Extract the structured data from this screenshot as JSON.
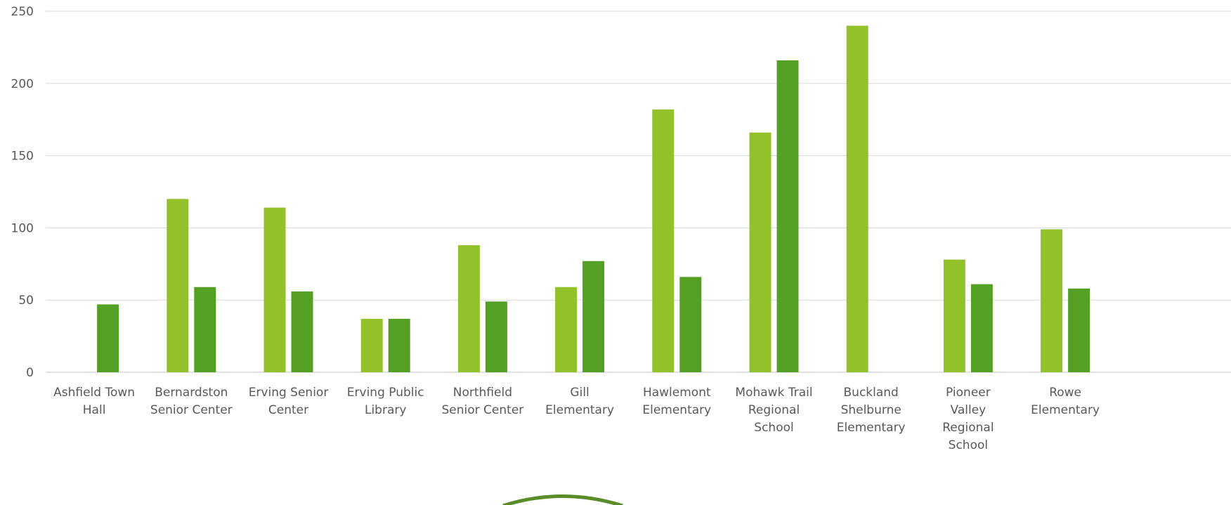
{
  "chart_data": {
    "type": "bar",
    "categories": [
      [
        "Ashfield Town",
        "Hall"
      ],
      [
        "Bernardston",
        "Senior Center"
      ],
      [
        "Erving Senior",
        "Center"
      ],
      [
        "Erving Public",
        "Library"
      ],
      [
        "Northfield",
        "Senior Center"
      ],
      [
        "Gill",
        "Elementary"
      ],
      [
        "Hawlemont",
        "Elementary"
      ],
      [
        "Mohawk Trail",
        "Regional",
        "School"
      ],
      [
        "Buckland",
        "Shelburne",
        "Elementary"
      ],
      [
        "Pioneer",
        "Valley",
        "Regional",
        "School"
      ],
      [
        "Rowe",
        "Elementary"
      ]
    ],
    "series": [
      {
        "values": [
          0,
          120,
          114,
          37,
          88,
          59,
          182,
          166,
          240,
          78,
          99
        ],
        "color": "#92C12A"
      },
      {
        "values": [
          47,
          59,
          56,
          37,
          49,
          77,
          66,
          216,
          0,
          61,
          58
        ],
        "color": "#54A024"
      }
    ],
    "yticks": [
      0,
      50,
      100,
      150,
      200,
      250
    ],
    "ylim": [
      0,
      250
    ],
    "grid": true,
    "gridline_color": "#D9D9D9",
    "decoration_color": "#5B8C2A"
  }
}
